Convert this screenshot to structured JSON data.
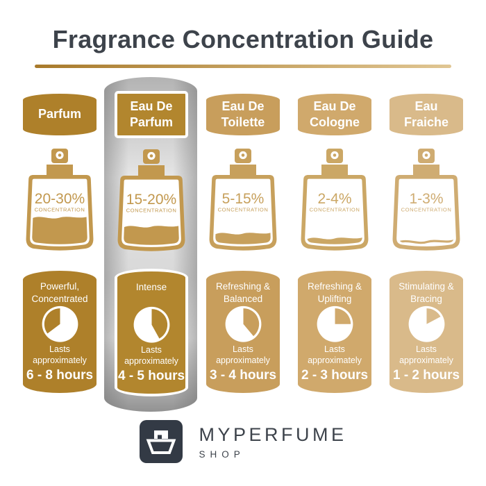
{
  "title": "Fragrance Concentration Guide",
  "concentration_label": "CONCENTRATION",
  "lasts_label": "Lasts approximately",
  "colors": {
    "title": "#3d434b",
    "underline_start": "#a87a2b",
    "underline_end": "#e0c693",
    "logo": "#333a45",
    "highlight_silver": "#b3b3b3"
  },
  "columns": [
    {
      "name_lines": [
        "Parfum"
      ],
      "concentration": "20-30%",
      "fill_percent": 42,
      "fill_style": "fill",
      "clock": {
        "start_deg": 233,
        "end_deg": 360
      },
      "desc_lines": [
        "Powerful,",
        "Concentrated"
      ],
      "duration": "6 - 8 hours",
      "accent_color": "#ae802a",
      "bottle_color": "#c2984e",
      "highlighted": false
    },
    {
      "name_lines": [
        "Eau De",
        "Parfum"
      ],
      "concentration": "15-20%",
      "fill_percent": 30,
      "fill_style": "fill",
      "clock": {
        "start_deg": 0,
        "end_deg": 151
      },
      "desc_lines": [
        "Intense"
      ],
      "duration": "4 - 5 hours",
      "accent_color": "#b2862e",
      "bottle_color": "#c2984e",
      "highlighted": true
    },
    {
      "name_lines": [
        "Eau De",
        "Toilette"
      ],
      "concentration": "5-15%",
      "fill_percent": 19,
      "fill_style": "fill",
      "clock": {
        "start_deg": 0,
        "end_deg": 140
      },
      "desc_lines": [
        "Refreshing &",
        "Balanced"
      ],
      "duration": "3 - 4 hours",
      "accent_color": "#c89e5c",
      "bottle_color": "#c7a05c",
      "highlighted": false
    },
    {
      "name_lines": [
        "Eau De",
        "Cologne"
      ],
      "concentration": "2-4%",
      "fill_percent": 12,
      "fill_style": "fill",
      "clock": {
        "start_deg": 0,
        "end_deg": 90
      },
      "desc_lines": [
        "Refreshing &",
        "Uplifting"
      ],
      "duration": "2 - 3 hours",
      "accent_color": "#d0a96c",
      "bottle_color": "#cba765",
      "highlighted": false
    },
    {
      "name_lines": [
        "Eau",
        "Fraiche"
      ],
      "concentration": "1-3%",
      "fill_percent": 6,
      "fill_style": "line",
      "clock": {
        "start_deg": 0,
        "end_deg": 62
      },
      "desc_lines": [
        "Stimulating &",
        "Bracing"
      ],
      "duration": "1 - 2 hours",
      "accent_color": "#d9ba8a",
      "bottle_color": "#cfac72",
      "highlighted": false
    }
  ],
  "logo": {
    "brand": "MYPERFUME",
    "sub": "SHOP"
  }
}
